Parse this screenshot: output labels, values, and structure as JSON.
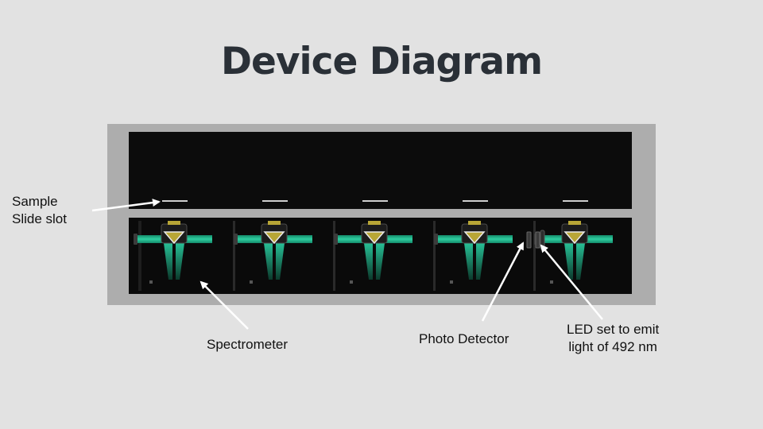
{
  "title": "Device Diagram",
  "labels": {
    "sample_slot_line1": "Sample",
    "sample_slot_line2": "Slide slot",
    "spectrometer": "Spectrometer",
    "photo_detector": "Photo Detector",
    "led_line1": "LED set to emit",
    "led_line2": "light of 492 nm"
  },
  "colors": {
    "background": "#e2e2e2",
    "frame": "#adadad",
    "panel": "#0c0c0c",
    "beam": "#23b08a",
    "prism": "#b8a636",
    "title": "#2a3037"
  },
  "device": {
    "unit_count": 5
  }
}
